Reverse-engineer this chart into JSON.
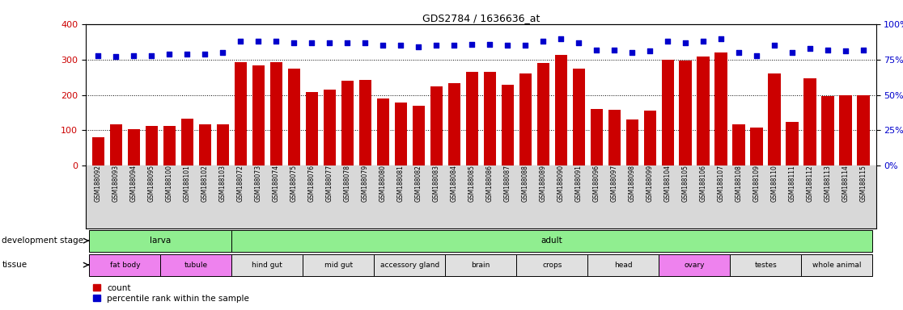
{
  "title": "GDS2784 / 1636636_at",
  "samples": [
    "GSM188092",
    "GSM188093",
    "GSM188094",
    "GSM188095",
    "GSM188100",
    "GSM188101",
    "GSM188102",
    "GSM188103",
    "GSM188072",
    "GSM188073",
    "GSM188074",
    "GSM188075",
    "GSM188076",
    "GSM188077",
    "GSM188078",
    "GSM188079",
    "GSM188080",
    "GSM188081",
    "GSM188082",
    "GSM188083",
    "GSM188084",
    "GSM188085",
    "GSM188086",
    "GSM188087",
    "GSM188088",
    "GSM188089",
    "GSM188090",
    "GSM188091",
    "GSM188096",
    "GSM188097",
    "GSM188098",
    "GSM188099",
    "GSM188104",
    "GSM188105",
    "GSM188106",
    "GSM188107",
    "GSM188108",
    "GSM188109",
    "GSM188110",
    "GSM188111",
    "GSM188112",
    "GSM188113",
    "GSM188114",
    "GSM188115"
  ],
  "counts": [
    80,
    118,
    103,
    113,
    113,
    133,
    118,
    118,
    293,
    283,
    293,
    275,
    208,
    215,
    240,
    243,
    190,
    178,
    170,
    225,
    233,
    265,
    265,
    228,
    260,
    290,
    313,
    275,
    160,
    158,
    130,
    155,
    300,
    298,
    310,
    320,
    118,
    108,
    260,
    123,
    248,
    198,
    200,
    200
  ],
  "percentiles": [
    78,
    77,
    78,
    78,
    79,
    79,
    79,
    80,
    88,
    88,
    88,
    87,
    87,
    87,
    87,
    87,
    85,
    85,
    84,
    85,
    85,
    86,
    86,
    85,
    85,
    88,
    90,
    87,
    82,
    82,
    80,
    81,
    88,
    87,
    88,
    90,
    80,
    78,
    85,
    80,
    83,
    82,
    81,
    82
  ],
  "development_stages": [
    {
      "label": "larva",
      "start": 0,
      "end": 8,
      "color": "#90ee90"
    },
    {
      "label": "adult",
      "start": 8,
      "end": 44,
      "color": "#90ee90"
    }
  ],
  "tissues": [
    {
      "label": "fat body",
      "start": 0,
      "end": 4,
      "color": "#ee82ee"
    },
    {
      "label": "tubule",
      "start": 4,
      "end": 8,
      "color": "#ee82ee"
    },
    {
      "label": "hind gut",
      "start": 8,
      "end": 12,
      "color": "#e0e0e0"
    },
    {
      "label": "mid gut",
      "start": 12,
      "end": 16,
      "color": "#e0e0e0"
    },
    {
      "label": "accessory gland",
      "start": 16,
      "end": 20,
      "color": "#e0e0e0"
    },
    {
      "label": "brain",
      "start": 20,
      "end": 24,
      "color": "#e0e0e0"
    },
    {
      "label": "crops",
      "start": 24,
      "end": 28,
      "color": "#e0e0e0"
    },
    {
      "label": "head",
      "start": 28,
      "end": 32,
      "color": "#e0e0e0"
    },
    {
      "label": "ovary",
      "start": 32,
      "end": 36,
      "color": "#ee82ee"
    },
    {
      "label": "testes",
      "start": 36,
      "end": 40,
      "color": "#e0e0e0"
    },
    {
      "label": "whole animal",
      "start": 40,
      "end": 44,
      "color": "#e0e0e0"
    }
  ],
  "bar_color": "#cc0000",
  "dot_color": "#0000cc",
  "ylim_left": [
    0,
    400
  ],
  "ylim_right": [
    0,
    100
  ],
  "yticks_left": [
    0,
    100,
    200,
    300,
    400
  ],
  "yticks_right": [
    0,
    25,
    50,
    75,
    100
  ],
  "chart_bg": "#d8d8d8",
  "xticklabel_bg": "#d8d8d8"
}
